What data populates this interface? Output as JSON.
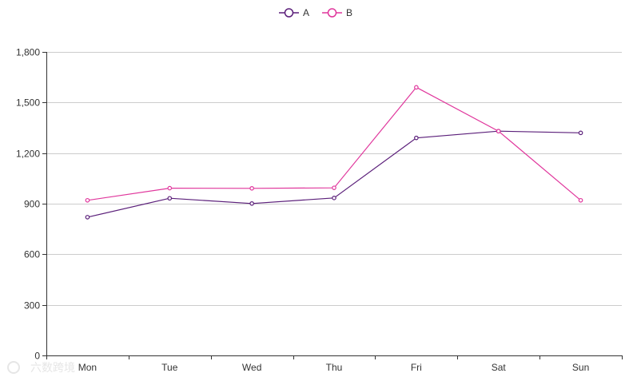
{
  "chart_data": {
    "type": "line",
    "categories": [
      "Mon",
      "Tue",
      "Wed",
      "Thu",
      "Fri",
      "Sat",
      "Sun"
    ],
    "series": [
      {
        "name": "A",
        "color": "#5b1f7a",
        "values": [
          820,
          932,
          901,
          934,
          1290,
          1330,
          1320
        ]
      },
      {
        "name": "B",
        "color": "#e0369c",
        "values": [
          920,
          992,
          991,
          994,
          1590,
          1330,
          920
        ]
      }
    ],
    "ylim": [
      0,
      1800
    ],
    "yticks": [
      "0",
      "300",
      "600",
      "900",
      "1,200",
      "1,500",
      "1,800"
    ],
    "ytick_values": [
      0,
      300,
      600,
      900,
      1200,
      1500,
      1800
    ],
    "grid": true,
    "legend_position": "top-center",
    "title": "",
    "xlabel": "",
    "ylabel": ""
  },
  "watermark": {
    "text": "六数跨境"
  }
}
